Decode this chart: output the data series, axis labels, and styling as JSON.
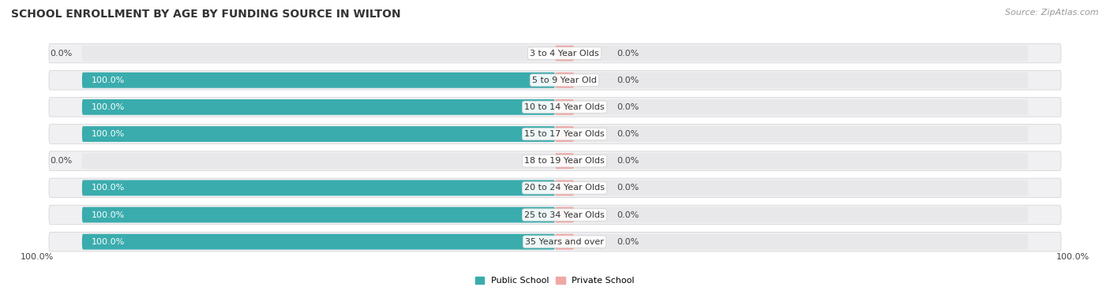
{
  "title": "SCHOOL ENROLLMENT BY AGE BY FUNDING SOURCE IN WILTON",
  "source": "Source: ZipAtlas.com",
  "categories": [
    "3 to 4 Year Olds",
    "5 to 9 Year Old",
    "10 to 14 Year Olds",
    "15 to 17 Year Olds",
    "18 to 19 Year Olds",
    "20 to 24 Year Olds",
    "25 to 34 Year Olds",
    "35 Years and over"
  ],
  "public_values": [
    0.0,
    100.0,
    100.0,
    100.0,
    0.0,
    100.0,
    100.0,
    100.0
  ],
  "private_values": [
    0.0,
    0.0,
    0.0,
    0.0,
    0.0,
    0.0,
    0.0,
    0.0
  ],
  "public_color": "#3AACAD",
  "public_color_light": "#7ECFCF",
  "private_color": "#F0A8A4",
  "private_color_light": "#F5C0BC",
  "bar_bg_color": "#E8E8EA",
  "bar_bg_border": "#D8D8DC",
  "row_bg_color": "#F0F0F2",
  "public_label": "Public School",
  "private_label": "Private School",
  "x_left_label": "100.0%",
  "x_right_label": "100.0%",
  "title_fontsize": 10,
  "source_fontsize": 8,
  "label_fontsize": 8,
  "category_fontsize": 8,
  "bar_height": 0.58,
  "min_bar_display": 4.0,
  "figsize": [
    14.06,
    3.78
  ],
  "dpi": 100
}
